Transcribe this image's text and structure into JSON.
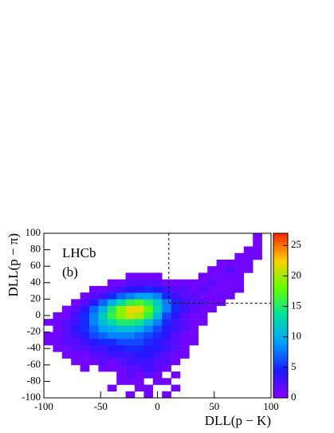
{
  "chart_data": {
    "type": "heatmap2d",
    "x_label": "DLL(p − K)",
    "y_label": "DLL(p − π)",
    "annotations": [
      "LHCb",
      "(b)"
    ],
    "xlim": [
      -100,
      100
    ],
    "ylim": [
      -100,
      100
    ],
    "zlim": [
      0,
      27
    ],
    "xticks": [
      -100,
      -50,
      0,
      50,
      100
    ],
    "yticks": [
      -100,
      -80,
      -60,
      -40,
      -20,
      0,
      20,
      40,
      60,
      80,
      100
    ],
    "zticks": [
      0,
      5,
      10,
      15,
      20,
      25
    ],
    "colorscale": [
      "#8a00ff",
      "#1a1aff",
      "#00a0ff",
      "#00e0a0",
      "#60ff00",
      "#ffd000",
      "#ff2000"
    ],
    "cuts": {
      "x": 10,
      "y": 15
    },
    "xbins": [
      -100,
      -92,
      -84,
      -76,
      -68,
      -60,
      -52,
      -44,
      -36,
      -28,
      -20,
      -12,
      -4,
      4,
      12,
      20,
      28,
      36,
      44,
      52,
      60,
      68,
      76,
      84,
      92,
      100
    ],
    "ybins": [
      -100,
      -92,
      -84,
      -76,
      -68,
      -60,
      -52,
      -44,
      -36,
      -28,
      -20,
      -12,
      -4,
      4,
      12,
      20,
      28,
      36,
      44,
      52,
      60,
      68,
      76,
      84,
      92,
      100
    ],
    "counts": [
      [
        0,
        0,
        0,
        0,
        0,
        0,
        0,
        0,
        0,
        1,
        0,
        1,
        0,
        1,
        0,
        0,
        0,
        0,
        0,
        0,
        0,
        0,
        0,
        0,
        0
      ],
      [
        0,
        0,
        0,
        0,
        0,
        0,
        0,
        1,
        0,
        0,
        1,
        1,
        0,
        0,
        1,
        0,
        0,
        0,
        0,
        0,
        0,
        0,
        0,
        0,
        0
      ],
      [
        0,
        0,
        0,
        0,
        0,
        0,
        0,
        0,
        1,
        1,
        1,
        0,
        1,
        1,
        0,
        0,
        0,
        0,
        0,
        0,
        0,
        0,
        0,
        0,
        0
      ],
      [
        0,
        0,
        0,
        0,
        0,
        0,
        0,
        0,
        1,
        2,
        1,
        2,
        1,
        0,
        1,
        0,
        0,
        0,
        0,
        0,
        0,
        0,
        0,
        0,
        0
      ],
      [
        0,
        0,
        0,
        0,
        1,
        0,
        1,
        1,
        1,
        2,
        2,
        3,
        2,
        1,
        0,
        0,
        0,
        0,
        0,
        0,
        0,
        0,
        0,
        0,
        0
      ],
      [
        0,
        0,
        0,
        1,
        1,
        1,
        2,
        1,
        2,
        3,
        3,
        3,
        2,
        2,
        1,
        0,
        0,
        0,
        0,
        0,
        0,
        0,
        0,
        0,
        0
      ],
      [
        0,
        0,
        1,
        1,
        1,
        2,
        2,
        3,
        3,
        3,
        4,
        4,
        3,
        2,
        1,
        1,
        0,
        0,
        0,
        0,
        0,
        0,
        0,
        0,
        0
      ],
      [
        0,
        1,
        1,
        2,
        2,
        3,
        3,
        4,
        4,
        5,
        5,
        4,
        4,
        3,
        2,
        1,
        0,
        0,
        0,
        0,
        0,
        0,
        0,
        0,
        0
      ],
      [
        1,
        1,
        2,
        2,
        3,
        4,
        5,
        5,
        6,
        6,
        6,
        5,
        4,
        3,
        2,
        1,
        1,
        0,
        0,
        0,
        0,
        0,
        0,
        0,
        0
      ],
      [
        1,
        1,
        2,
        3,
        4,
        6,
        7,
        8,
        8,
        8,
        7,
        6,
        5,
        4,
        2,
        1,
        1,
        0,
        0,
        0,
        0,
        0,
        0,
        0,
        0
      ],
      [
        0,
        1,
        2,
        4,
        5,
        7,
        9,
        10,
        11,
        11,
        10,
        8,
        6,
        4,
        3,
        2,
        1,
        0,
        0,
        0,
        0,
        0,
        0,
        0,
        0
      ],
      [
        1,
        1,
        2,
        3,
        5,
        8,
        11,
        13,
        15,
        15,
        14,
        11,
        8,
        5,
        3,
        2,
        1,
        1,
        0,
        0,
        0,
        0,
        0,
        0,
        0
      ],
      [
        0,
        1,
        1,
        3,
        5,
        8,
        12,
        16,
        19,
        21,
        20,
        16,
        11,
        6,
        4,
        2,
        1,
        1,
        0,
        0,
        0,
        0,
        0,
        0,
        0
      ],
      [
        0,
        0,
        1,
        2,
        4,
        7,
        10,
        15,
        19,
        22,
        22,
        18,
        13,
        8,
        5,
        3,
        2,
        1,
        1,
        0,
        0,
        0,
        0,
        0,
        0
      ],
      [
        0,
        0,
        0,
        1,
        2,
        4,
        7,
        10,
        13,
        16,
        17,
        15,
        12,
        8,
        5,
        3,
        2,
        2,
        1,
        1,
        0,
        0,
        0,
        0,
        0
      ],
      [
        0,
        0,
        0,
        0,
        1,
        2,
        3,
        5,
        7,
        8,
        9,
        9,
        8,
        5,
        3,
        2,
        2,
        1,
        1,
        1,
        1,
        0,
        0,
        0,
        0
      ],
      [
        0,
        0,
        0,
        0,
        0,
        1,
        1,
        2,
        3,
        4,
        4,
        5,
        4,
        3,
        2,
        2,
        1,
        2,
        1,
        1,
        1,
        1,
        0,
        0,
        0
      ],
      [
        0,
        0,
        0,
        0,
        0,
        0,
        0,
        1,
        1,
        2,
        2,
        2,
        2,
        1,
        1,
        1,
        1,
        1,
        2,
        1,
        1,
        1,
        0,
        0,
        0
      ],
      [
        0,
        0,
        0,
        0,
        0,
        0,
        0,
        0,
        0,
        1,
        1,
        1,
        1,
        0,
        0,
        0,
        0,
        1,
        1,
        1,
        1,
        1,
        0,
        0,
        0
      ],
      [
        0,
        0,
        0,
        0,
        0,
        0,
        0,
        0,
        0,
        0,
        0,
        0,
        0,
        0,
        0,
        0,
        0,
        0,
        1,
        1,
        2,
        1,
        1,
        0,
        0
      ],
      [
        0,
        0,
        0,
        0,
        0,
        0,
        0,
        0,
        0,
        0,
        0,
        0,
        0,
        0,
        0,
        0,
        0,
        0,
        0,
        1,
        1,
        1,
        1,
        0,
        0
      ],
      [
        0,
        0,
        0,
        0,
        0,
        0,
        0,
        0,
        0,
        0,
        0,
        0,
        0,
        0,
        0,
        0,
        0,
        0,
        0,
        0,
        0,
        1,
        1,
        1,
        0
      ],
      [
        0,
        0,
        0,
        0,
        0,
        0,
        0,
        0,
        0,
        0,
        0,
        0,
        0,
        0,
        0,
        0,
        0,
        0,
        0,
        0,
        0,
        0,
        1,
        1,
        0
      ],
      [
        0,
        0,
        0,
        0,
        0,
        0,
        0,
        0,
        0,
        0,
        0,
        0,
        0,
        0,
        0,
        0,
        0,
        0,
        0,
        0,
        0,
        0,
        0,
        1,
        0
      ],
      [
        0,
        0,
        0,
        0,
        0,
        0,
        0,
        0,
        0,
        0,
        0,
        0,
        0,
        0,
        0,
        0,
        0,
        0,
        0,
        0,
        0,
        0,
        0,
        1,
        0
      ]
    ]
  }
}
